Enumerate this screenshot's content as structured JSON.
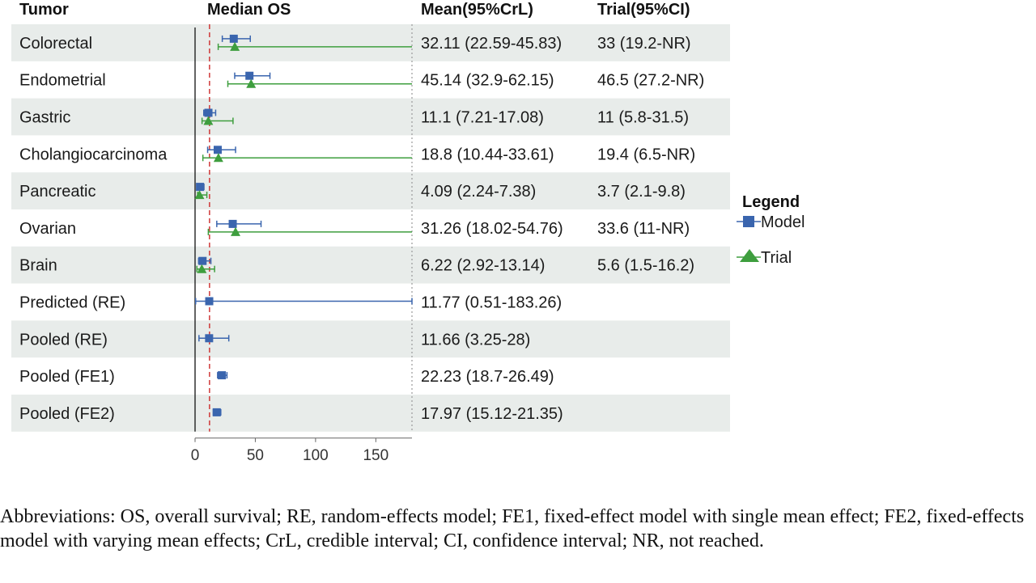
{
  "chart_data": {
    "type": "forest",
    "headers": {
      "label": "Tumor",
      "plot": "Median OS",
      "model_col": "Mean(95%CrL)",
      "trial_col": "Trial(95%CI)"
    },
    "xlim": [
      0,
      180
    ],
    "xticks": [
      0,
      50,
      100,
      150
    ],
    "reference_line": 12,
    "legend": {
      "title": "Legend",
      "entries": [
        {
          "label": "Model",
          "color": "#3a65ae",
          "marker": "square"
        },
        {
          "label": "Trial",
          "color": "#3e9e3e",
          "marker": "triangle"
        }
      ]
    },
    "rows": [
      {
        "label": "Colorectal",
        "model": {
          "mean": 32.11,
          "lo": 22.59,
          "hi": 45.83
        },
        "trial": {
          "mean": 33,
          "lo": 19.2,
          "hi": null
        },
        "model_text": "32.11 (22.59-45.83)",
        "trial_text": "33 (19.2-NR)"
      },
      {
        "label": "Endometrial",
        "model": {
          "mean": 45.14,
          "lo": 32.9,
          "hi": 62.15
        },
        "trial": {
          "mean": 46.5,
          "lo": 27.2,
          "hi": null
        },
        "model_text": "45.14 (32.9-62.15)",
        "trial_text": "46.5 (27.2-NR)"
      },
      {
        "label": "Gastric",
        "model": {
          "mean": 11.1,
          "lo": 7.21,
          "hi": 17.08
        },
        "trial": {
          "mean": 11,
          "lo": 5.8,
          "hi": 31.5
        },
        "model_text": "11.1 (7.21-17.08)",
        "trial_text": "11 (5.8-31.5)"
      },
      {
        "label": "Cholangiocarcinoma",
        "model": {
          "mean": 18.8,
          "lo": 10.44,
          "hi": 33.61
        },
        "trial": {
          "mean": 19.4,
          "lo": 6.5,
          "hi": null
        },
        "model_text": "18.8 (10.44-33.61)",
        "trial_text": "19.4 (6.5-NR)"
      },
      {
        "label": "Pancreatic",
        "model": {
          "mean": 4.09,
          "lo": 2.24,
          "hi": 7.38
        },
        "trial": {
          "mean": 3.7,
          "lo": 2.1,
          "hi": 9.8
        },
        "model_text": "4.09 (2.24-7.38)",
        "trial_text": "3.7 (2.1-9.8)"
      },
      {
        "label": "Ovarian",
        "model": {
          "mean": 31.26,
          "lo": 18.02,
          "hi": 54.76
        },
        "trial": {
          "mean": 33.6,
          "lo": 11,
          "hi": null
        },
        "model_text": "31.26 (18.02-54.76)",
        "trial_text": "33.6 (11-NR)"
      },
      {
        "label": "Brain",
        "model": {
          "mean": 6.22,
          "lo": 2.92,
          "hi": 13.14
        },
        "trial": {
          "mean": 5.6,
          "lo": 1.5,
          "hi": 16.2
        },
        "model_text": "6.22 (2.92-13.14)",
        "trial_text": "5.6 (1.5-16.2)"
      },
      {
        "label": "Predicted (RE)",
        "model": {
          "mean": 11.77,
          "lo": 0.51,
          "hi": 183.26
        },
        "trial": null,
        "model_text": "11.77 (0.51-183.26)",
        "trial_text": ""
      },
      {
        "label": "Pooled (RE)",
        "model": {
          "mean": 11.66,
          "lo": 3.25,
          "hi": 28
        },
        "trial": null,
        "model_text": "11.66 (3.25-28)",
        "trial_text": ""
      },
      {
        "label": "Pooled (FE1)",
        "model": {
          "mean": 22.23,
          "lo": 18.7,
          "hi": 26.49
        },
        "trial": null,
        "model_text": "22.23 (18.7-26.49)",
        "trial_text": ""
      },
      {
        "label": "Pooled (FE2)",
        "model": {
          "mean": 17.97,
          "lo": 15.12,
          "hi": 21.35
        },
        "trial": null,
        "model_text": "17.97 (15.12-21.35)",
        "trial_text": ""
      }
    ]
  },
  "footnote": "Abbreviations: OS, overall survival; RE, random-effects model; FE1, fixed-effect model with single mean effect; FE2, fixed-effects model with varying mean effects; CrL, credible interval; CI, confidence interval; NR, not reached."
}
